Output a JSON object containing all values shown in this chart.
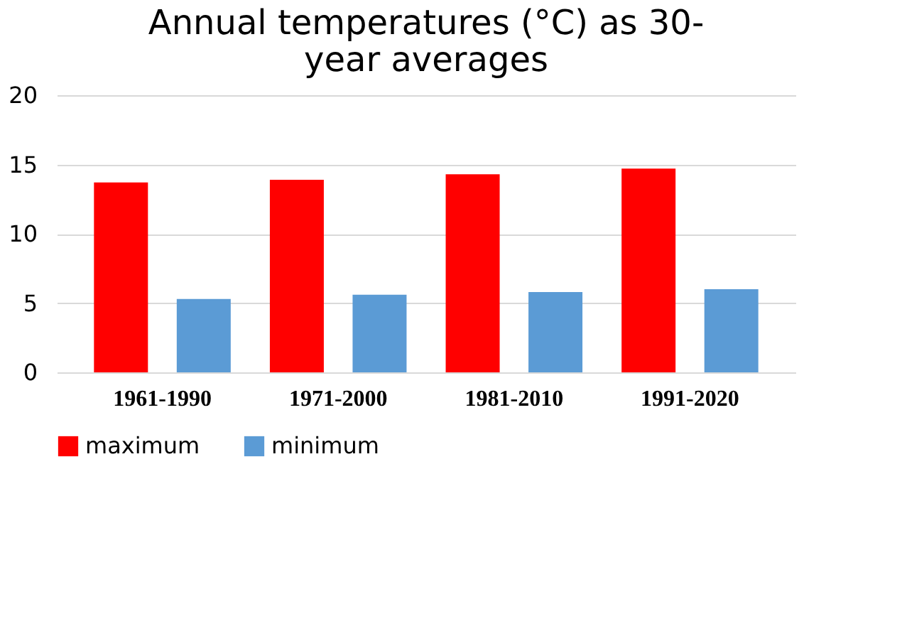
{
  "chart_data": {
    "type": "bar",
    "title": "Annual temperatures (°C) as 30-year averages",
    "categories": [
      "1961-1990",
      "1971-2000",
      "1981-2010",
      "1991-2020"
    ],
    "series": [
      {
        "name": "maximum",
        "color": "#ff0000",
        "values": [
          13.7,
          13.9,
          14.3,
          14.7
        ]
      },
      {
        "name": "minimum",
        "color": "#5b9bd5",
        "values": [
          5.3,
          5.6,
          5.8,
          6.0
        ]
      }
    ],
    "ylim": [
      0,
      20
    ],
    "yticks": [
      0,
      5,
      10,
      15,
      20
    ],
    "grid": "y",
    "legend": "bottom"
  }
}
